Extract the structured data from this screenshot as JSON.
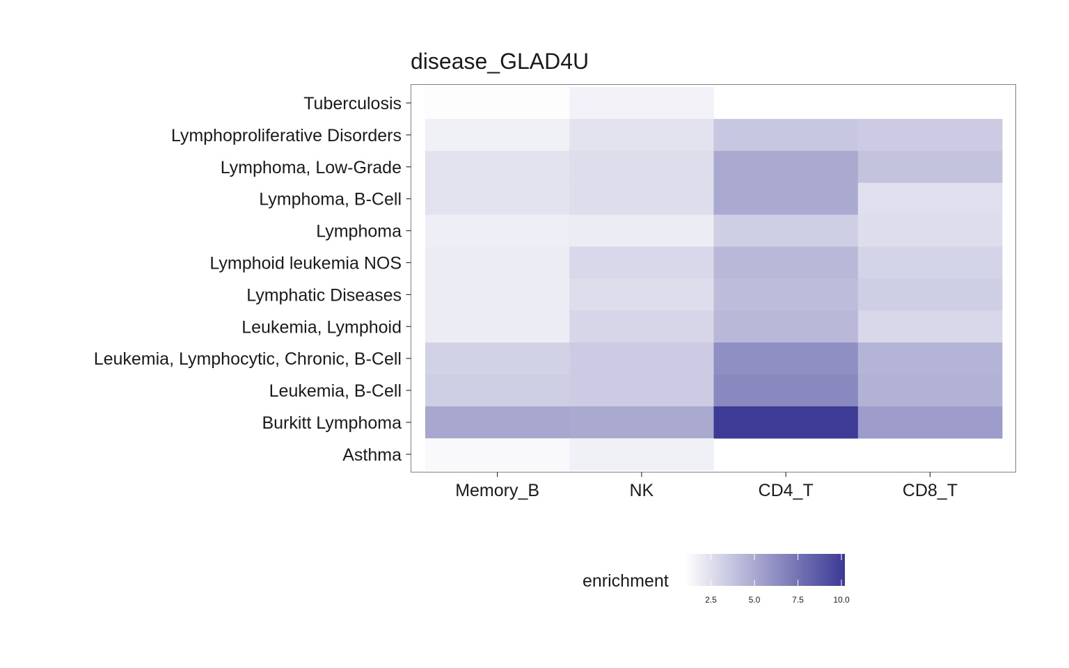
{
  "chart_data": {
    "type": "heatmap",
    "title": "disease_GLAD4U",
    "xlabel": "",
    "ylabel": "",
    "x_categories": [
      "Memory_B",
      "NK",
      "CD4_T",
      "CD8_T"
    ],
    "y_categories": [
      "Tuberculosis",
      "Lymphoproliferative Disorders",
      "Lymphoma, Low-Grade",
      "Lymphoma, B-Cell",
      "Lymphoma",
      "Lymphoid leukemia NOS",
      "Lymphatic Diseases",
      "Leukemia, Lymphoid",
      "Leukemia, Lymphocytic, Chronic, B-Cell",
      "Leukemia, B-Cell",
      "Burkitt Lymphoma",
      "Asthma"
    ],
    "values": [
      [
        1.1,
        1.6,
        null,
        null
      ],
      [
        1.7,
        2.3,
        3.6,
        3.4
      ],
      [
        2.3,
        2.6,
        5.0,
        3.8
      ],
      [
        2.3,
        2.6,
        5.0,
        2.5
      ],
      [
        1.8,
        1.9,
        3.3,
        2.6
      ],
      [
        1.9,
        2.8,
        4.3,
        3.0
      ],
      [
        1.9,
        2.6,
        4.1,
        3.3
      ],
      [
        1.9,
        2.9,
        4.3,
        2.8
      ],
      [
        3.1,
        3.4,
        6.2,
        4.5
      ],
      [
        3.3,
        3.4,
        6.5,
        4.6
      ],
      [
        5.1,
        5.0,
        10.1,
        5.6
      ],
      [
        1.3,
        1.7,
        null,
        null
      ]
    ],
    "legend": {
      "title": "enrichment",
      "ticks": [
        "2.5",
        "5.0",
        "7.5",
        "10.0"
      ],
      "tick_values": [
        2.5,
        5.0,
        7.5,
        10.0
      ],
      "range": [
        1.0,
        10.2
      ],
      "position": "bottom",
      "low_color": "#ffffff",
      "high_color": "#3b3994"
    },
    "grid": false
  }
}
